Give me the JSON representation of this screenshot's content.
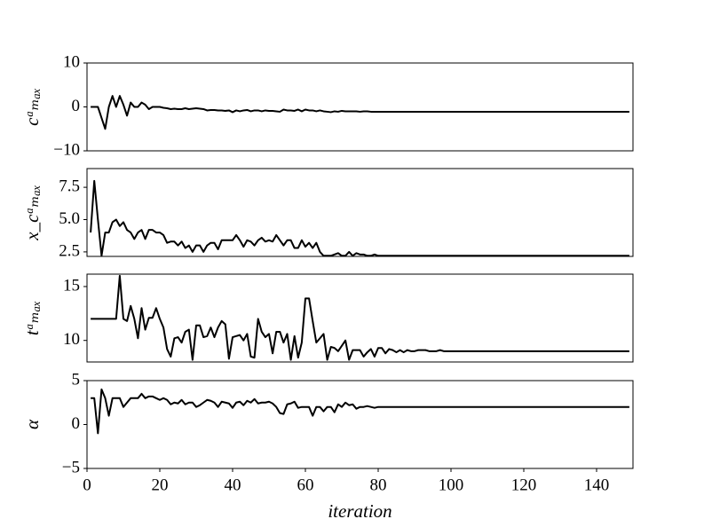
{
  "chart_data": [
    {
      "type": "line",
      "y_label": "cᵃₘₐₓ",
      "xlim": [
        0,
        150
      ],
      "ylim": [
        -10,
        10
      ],
      "yticks": [
        {
          "value": -10,
          "label": "−10"
        },
        0,
        10
      ],
      "x": [
        1,
        2,
        3,
        4,
        5,
        6,
        7,
        8,
        9,
        10,
        11,
        12,
        13,
        14,
        15,
        16,
        17,
        18,
        19,
        20,
        21,
        22,
        23,
        24,
        25,
        26,
        27,
        28,
        29,
        30,
        31,
        32,
        33,
        34,
        35,
        36,
        37,
        38,
        39,
        40,
        41,
        42,
        43,
        44,
        45,
        46,
        47,
        48,
        49,
        50,
        51,
        52,
        53,
        54,
        55,
        56,
        57,
        58,
        59,
        60,
        61,
        62,
        63,
        64,
        65,
        66,
        67,
        68,
        69,
        70,
        71,
        72,
        73,
        74,
        75,
        76,
        77,
        78,
        79,
        80,
        81,
        82,
        83,
        84,
        85,
        86,
        87,
        88,
        89,
        90,
        91,
        92,
        93,
        94,
        95,
        96,
        97,
        98,
        99,
        100,
        101,
        102,
        103,
        104,
        105,
        106,
        107,
        108,
        109,
        110,
        111,
        112,
        113,
        114,
        115,
        116,
        117,
        118,
        119,
        120,
        121,
        122,
        123,
        124,
        125,
        126,
        127,
        128,
        129,
        130,
        131,
        132,
        133,
        134,
        135,
        136,
        137,
        138,
        139,
        140,
        141,
        142,
        143,
        144,
        145,
        146,
        147,
        148,
        149
      ],
      "series": [
        {
          "color": "#000000",
          "values": [
            0,
            0,
            0,
            -2.5,
            -5,
            0,
            2.5,
            0,
            2.5,
            0.5,
            -2,
            1,
            0,
            0,
            1,
            0.5,
            -0.5,
            0,
            0,
            0,
            -0.2,
            -0.3,
            -0.5,
            -0.4,
            -0.5,
            -0.5,
            -0.3,
            -0.5,
            -0.4,
            -0.3,
            -0.4,
            -0.5,
            -0.8,
            -0.7,
            -0.7,
            -0.8,
            -0.8,
            -0.9,
            -0.8,
            -1.2,
            -0.8,
            -1,
            -0.8,
            -0.7,
            -1,
            -0.8,
            -0.8,
            -1,
            -0.8,
            -0.9,
            -0.9,
            -1,
            -1.1,
            -0.6,
            -0.8,
            -0.8,
            -0.9,
            -0.6,
            -1,
            -0.6,
            -0.8,
            -0.8,
            -1,
            -0.8,
            -1,
            -1.1,
            -1.2,
            -1,
            -1.1,
            -0.9,
            -1,
            -1,
            -1,
            -1,
            -1.1,
            -1,
            -1,
            -1.1,
            -1.1,
            -1.1,
            -1.1,
            -1.1,
            -1.1,
            -1.1,
            -1.1,
            -1.1,
            -1.1,
            -1.1,
            -1.1,
            -1.1,
            -1.1,
            -1.1,
            -1.1,
            -1.1,
            -1.1,
            -1.1,
            -1.1,
            -1.1,
            -1.1,
            -1.1,
            -1.1,
            -1.1,
            -1.1,
            -1.1,
            -1.1,
            -1.1,
            -1.1,
            -1.1,
            -1.1,
            -1.1,
            -1.1,
            -1.1,
            -1.1,
            -1.1,
            -1.1,
            -1.1,
            -1.1,
            -1.1,
            -1.1,
            -1.1,
            -1.1,
            -1.1,
            -1.1,
            -1.1,
            -1.1,
            -1.1,
            -1.1,
            -1.1,
            -1.1,
            -1.1,
            -1.1,
            -1.1,
            -1.1,
            -1.1,
            -1.1,
            -1.1,
            -1.1,
            -1.1,
            -1.1,
            -1.1,
            -1.1,
            -1.1,
            -1.1,
            -1.1,
            -1.1,
            -1.1,
            -1.1,
            -1.1,
            -1.1
          ]
        }
      ]
    },
    {
      "type": "line",
      "y_label": "x_cᵃₘₐₓ",
      "xlim": [
        0,
        150
      ],
      "ylim": [
        2.15,
        8.95
      ],
      "yticks": [
        2.5,
        {
          "value": 5,
          "label": "5.0"
        },
        7.5
      ],
      "x": [
        1,
        2,
        3,
        4,
        5,
        6,
        7,
        8,
        9,
        10,
        11,
        12,
        13,
        14,
        15,
        16,
        17,
        18,
        19,
        20,
        21,
        22,
        23,
        24,
        25,
        26,
        27,
        28,
        29,
        30,
        31,
        32,
        33,
        34,
        35,
        36,
        37,
        38,
        39,
        40,
        41,
        42,
        43,
        44,
        45,
        46,
        47,
        48,
        49,
        50,
        51,
        52,
        53,
        54,
        55,
        56,
        57,
        58,
        59,
        60,
        61,
        62,
        63,
        64,
        65,
        66,
        67,
        68,
        69,
        70,
        71,
        72,
        73,
        74,
        75,
        76,
        77,
        78,
        79,
        80,
        81,
        82,
        83,
        84,
        85,
        86,
        87,
        88,
        89,
        90,
        91,
        92,
        93,
        94,
        95,
        96,
        97,
        98,
        99,
        100,
        101,
        102,
        103,
        104,
        105,
        106,
        107,
        108,
        109,
        110,
        111,
        112,
        113,
        114,
        115,
        116,
        117,
        118,
        119,
        120,
        121,
        122,
        123,
        124,
        125,
        126,
        127,
        128,
        129,
        130,
        131,
        132,
        133,
        134,
        135,
        136,
        137,
        138,
        139,
        140,
        141,
        142,
        143,
        144,
        145,
        146,
        147,
        148,
        149
      ],
      "series": [
        {
          "color": "#000000",
          "values": [
            4,
            8,
            5,
            2.2,
            4,
            4,
            4.8,
            5,
            4.5,
            4.8,
            4.2,
            4,
            3.5,
            4,
            4.2,
            3.5,
            4.2,
            4.2,
            4,
            4,
            3.8,
            3.2,
            3.3,
            3.3,
            3,
            3.3,
            2.8,
            3,
            2.5,
            3,
            3,
            2.5,
            3,
            3.2,
            3.2,
            2.7,
            3.4,
            3.4,
            3.4,
            3.4,
            3.8,
            3.4,
            2.9,
            3.4,
            3.3,
            3,
            3.4,
            3.6,
            3.3,
            3.4,
            3.3,
            3.8,
            3.4,
            3,
            3.4,
            3.4,
            2.8,
            2.8,
            3.4,
            2.9,
            3.2,
            2.8,
            3.2,
            2.5,
            2.2,
            2.2,
            2.2,
            2.3,
            2.4,
            2.2,
            2.2,
            2.5,
            2.2,
            2.4,
            2.3,
            2.3,
            2.2,
            2.2,
            2.3,
            2.2,
            2.2,
            2.2,
            2.2,
            2.2,
            2.2,
            2.2,
            2.2,
            2.2,
            2.2,
            2.2,
            2.2,
            2.2,
            2.2,
            2.2,
            2.2,
            2.2,
            2.2,
            2.2,
            2.2,
            2.2,
            2.2,
            2.2,
            2.2,
            2.2,
            2.2,
            2.2,
            2.2,
            2.2,
            2.2,
            2.2,
            2.2,
            2.2,
            2.2,
            2.2,
            2.2,
            2.2,
            2.2,
            2.2,
            2.2,
            2.2,
            2.2,
            2.2,
            2.2,
            2.2,
            2.2,
            2.2,
            2.2,
            2.2,
            2.2,
            2.2,
            2.2,
            2.2,
            2.2,
            2.2,
            2.2,
            2.2,
            2.2,
            2.2,
            2.2,
            2.2,
            2.2,
            2.2,
            2.2,
            2.2,
            2.2,
            2.2,
            2.2,
            2.2,
            2.2
          ]
        }
      ]
    },
    {
      "type": "line",
      "y_label": "tᵃₘₐₓ",
      "xlim": [
        0,
        150
      ],
      "ylim": [
        8.0,
        16.15
      ],
      "yticks": [
        10,
        15
      ],
      "x": [
        1,
        2,
        3,
        4,
        5,
        6,
        7,
        8,
        9,
        10,
        11,
        12,
        13,
        14,
        15,
        16,
        17,
        18,
        19,
        20,
        21,
        22,
        23,
        24,
        25,
        26,
        27,
        28,
        29,
        30,
        31,
        32,
        33,
        34,
        35,
        36,
        37,
        38,
        39,
        40,
        41,
        42,
        43,
        44,
        45,
        46,
        47,
        48,
        49,
        50,
        51,
        52,
        53,
        54,
        55,
        56,
        57,
        58,
        59,
        60,
        61,
        62,
        63,
        64,
        65,
        66,
        67,
        68,
        69,
        70,
        71,
        72,
        73,
        74,
        75,
        76,
        77,
        78,
        79,
        80,
        81,
        82,
        83,
        84,
        85,
        86,
        87,
        88,
        89,
        90,
        91,
        92,
        93,
        94,
        95,
        96,
        97,
        98,
        99,
        100,
        101,
        102,
        103,
        104,
        105,
        106,
        107,
        108,
        109,
        110,
        111,
        112,
        113,
        114,
        115,
        116,
        117,
        118,
        119,
        120,
        121,
        122,
        123,
        124,
        125,
        126,
        127,
        128,
        129,
        130,
        131,
        132,
        133,
        134,
        135,
        136,
        137,
        138,
        139,
        140,
        141,
        142,
        143,
        144,
        145,
        146,
        147,
        148,
        149
      ],
      "series": [
        {
          "color": "#000000",
          "values": [
            12,
            12,
            12,
            12,
            12,
            12,
            12,
            12,
            16,
            12,
            11.8,
            13.2,
            12,
            10.2,
            13,
            11,
            12.1,
            12.1,
            13,
            12,
            11.2,
            9.2,
            8.5,
            10.2,
            10.3,
            9.8,
            10.8,
            11,
            8.2,
            11.4,
            11.4,
            10.3,
            10.4,
            11.2,
            10.3,
            11.2,
            11.8,
            11.5,
            8.3,
            10.3,
            10.4,
            10.5,
            10,
            10.6,
            8.5,
            8.4,
            12,
            10.8,
            10.3,
            10.6,
            8.8,
            10.8,
            10.8,
            9.8,
            10.6,
            8.2,
            10.4,
            8.4,
            9.8,
            13.9,
            13.9,
            11.8,
            9.8,
            10.2,
            10.6,
            8.2,
            9.4,
            9.3,
            9,
            9.5,
            10,
            8.2,
            9.1,
            9.1,
            9.1,
            8.5,
            8.9,
            9.2,
            8.5,
            9.3,
            9.3,
            8.8,
            9.2,
            9.1,
            8.9,
            9.1,
            8.9,
            9.1,
            9,
            9,
            9.1,
            9.1,
            9.1,
            9,
            9,
            9,
            9.1,
            9,
            9,
            9,
            9,
            9,
            9,
            9,
            9,
            9,
            9,
            9,
            9,
            9,
            9,
            9,
            9,
            9,
            9,
            9,
            9,
            9,
            9,
            9,
            9,
            9,
            9,
            9,
            9,
            9,
            9,
            9,
            9,
            9,
            9,
            9,
            9,
            9,
            9,
            9,
            9,
            9,
            9,
            9,
            9,
            9,
            9,
            9,
            9,
            9,
            9,
            9,
            9
          ]
        }
      ]
    },
    {
      "type": "line",
      "y_label": "α",
      "x_label": "iteration",
      "xlim": [
        0,
        150
      ],
      "ylim": [
        -5,
        5
      ],
      "yticks": [
        {
          "value": -5,
          "label": "−5"
        },
        0,
        5
      ],
      "xticks": [
        0,
        20,
        40,
        60,
        80,
        100,
        120,
        140
      ],
      "x": [
        1,
        2,
        3,
        4,
        5,
        6,
        7,
        8,
        9,
        10,
        11,
        12,
        13,
        14,
        15,
        16,
        17,
        18,
        19,
        20,
        21,
        22,
        23,
        24,
        25,
        26,
        27,
        28,
        29,
        30,
        31,
        32,
        33,
        34,
        35,
        36,
        37,
        38,
        39,
        40,
        41,
        42,
        43,
        44,
        45,
        46,
        47,
        48,
        49,
        50,
        51,
        52,
        53,
        54,
        55,
        56,
        57,
        58,
        59,
        60,
        61,
        62,
        63,
        64,
        65,
        66,
        67,
        68,
        69,
        70,
        71,
        72,
        73,
        74,
        75,
        76,
        77,
        78,
        79,
        80,
        81,
        82,
        83,
        84,
        85,
        86,
        87,
        88,
        89,
        90,
        91,
        92,
        93,
        94,
        95,
        96,
        97,
        98,
        99,
        100,
        101,
        102,
        103,
        104,
        105,
        106,
        107,
        108,
        109,
        110,
        111,
        112,
        113,
        114,
        115,
        116,
        117,
        118,
        119,
        120,
        121,
        122,
        123,
        124,
        125,
        126,
        127,
        128,
        129,
        130,
        131,
        132,
        133,
        134,
        135,
        136,
        137,
        138,
        139,
        140,
        141,
        142,
        143,
        144,
        145,
        146,
        147,
        148,
        149
      ],
      "series": [
        {
          "color": "#000000",
          "values": [
            3,
            3,
            -1,
            4,
            3,
            1,
            3,
            3,
            3,
            2,
            2.5,
            3,
            3,
            3,
            3.5,
            3,
            3.2,
            3.2,
            3,
            2.8,
            3,
            2.8,
            2.3,
            2.5,
            2.4,
            2.8,
            2.3,
            2.5,
            2.5,
            2,
            2.2,
            2.5,
            2.8,
            2.7,
            2.5,
            2,
            2.6,
            2.5,
            2.4,
            1.9,
            2.5,
            2.6,
            2.2,
            2.7,
            2.5,
            2.9,
            2.4,
            2.5,
            2.5,
            2.6,
            2.4,
            2,
            1.3,
            1.2,
            2.3,
            2.4,
            2.6,
            1.9,
            2,
            2,
            2,
            1,
            2,
            2,
            1.5,
            2,
            2,
            1.4,
            2.3,
            2,
            2.5,
            2.2,
            2.3,
            1.8,
            2,
            2,
            2.1,
            2,
            1.9,
            2,
            2,
            2,
            2,
            2,
            2,
            2,
            2,
            2,
            2,
            2,
            2,
            2,
            2,
            2,
            2,
            2,
            2,
            2,
            2,
            2,
            2,
            2,
            2,
            2,
            2,
            2,
            2,
            2,
            2,
            2,
            2,
            2,
            2,
            2,
            2,
            2,
            2,
            2,
            2,
            2,
            2,
            2,
            2,
            2,
            2,
            2,
            2,
            2,
            2,
            2,
            2,
            2,
            2,
            2,
            2,
            2,
            2,
            2,
            2,
            2,
            2,
            2,
            2,
            2,
            2,
            2,
            2,
            2,
            2
          ]
        }
      ]
    }
  ]
}
